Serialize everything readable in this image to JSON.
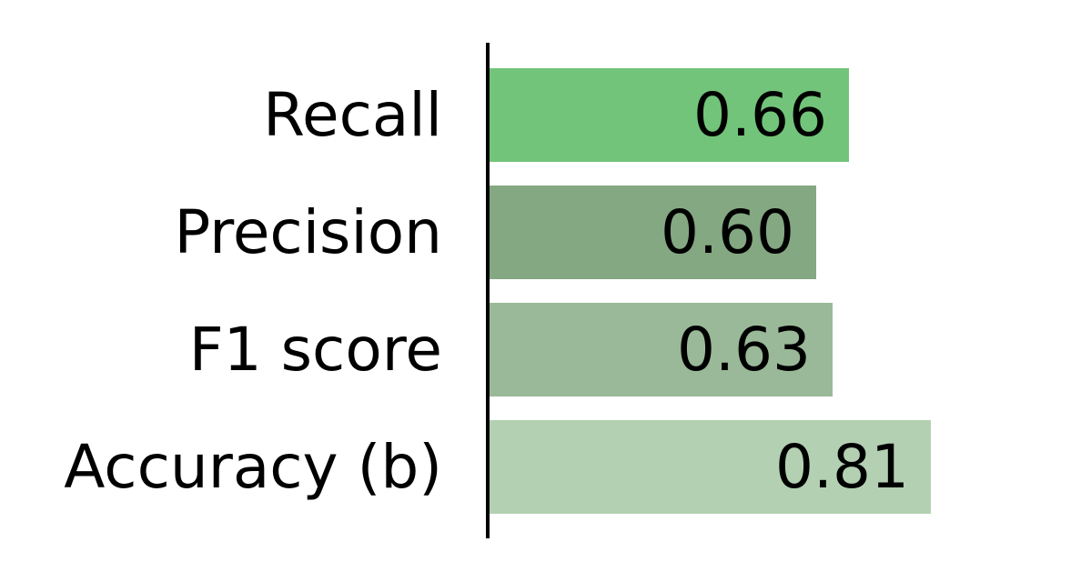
{
  "chart_data": {
    "type": "bar",
    "orientation": "horizontal",
    "title": "",
    "xlabel": "",
    "ylabel": "",
    "categories": [
      "Recall",
      "Precision",
      "F1 score",
      "Accuracy (b)"
    ],
    "values": [
      0.66,
      0.6,
      0.63,
      0.81
    ],
    "value_labels": [
      "0.66",
      "0.60",
      "0.63",
      "0.81"
    ],
    "colors": [
      "#72c47a",
      "#84a882",
      "#9ab998",
      "#b3d1b2"
    ],
    "xlim": [
      0,
      0.95
    ],
    "grid": false,
    "legend": "none"
  }
}
